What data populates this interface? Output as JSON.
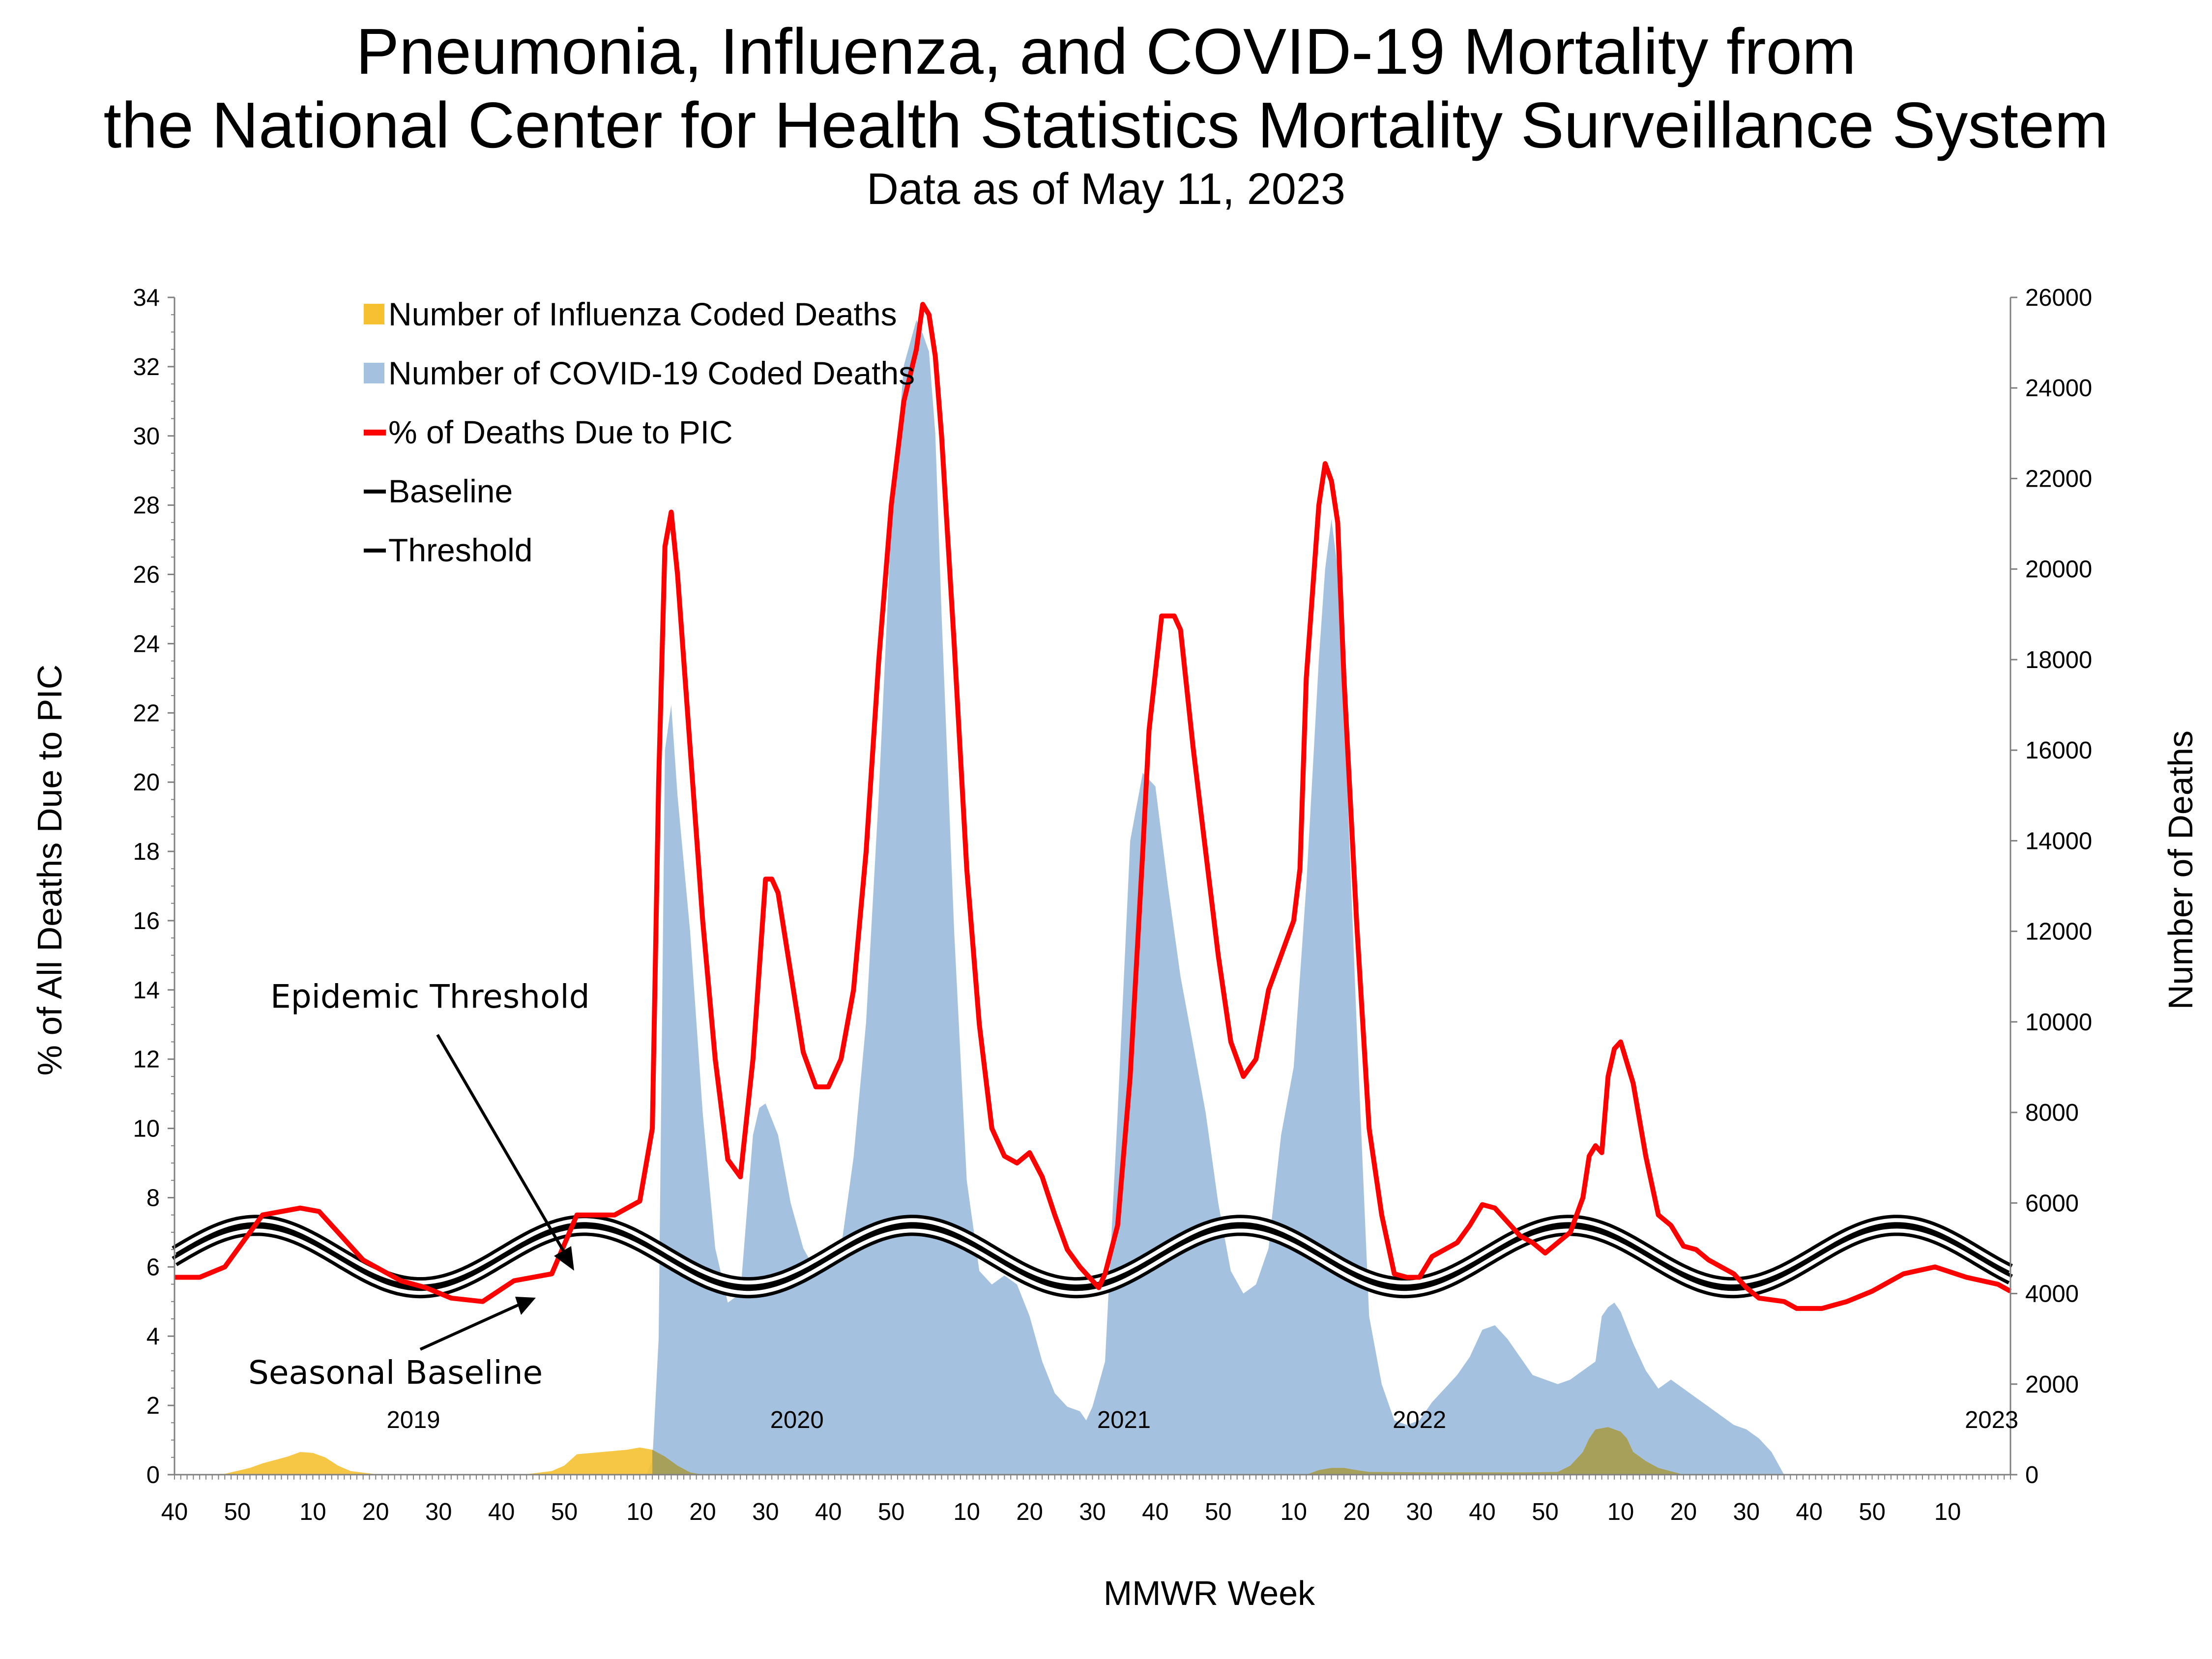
{
  "chart_data": {
    "type": "area",
    "title": "Pneumonia, Influenza, and COVID-19 Mortality from",
    "title_line2": "the National Center for Health Statistics Mortality Surveillance System",
    "subtitle": "Data as of May 11, 2023",
    "xlabel": "MMWR Week",
    "ylabel_left": "% of All Deaths Due to PIC",
    "ylabel_right": "Number of Deaths",
    "ylim_left": [
      0,
      34
    ],
    "ylim_right": [
      0,
      26000
    ],
    "left_ticks": [
      "0",
      "2",
      "4",
      "6",
      "8",
      "10",
      "12",
      "14",
      "16",
      "18",
      "20",
      "22",
      "24",
      "26",
      "28",
      "30",
      "32",
      "34"
    ],
    "right_ticks": [
      "0",
      "2000",
      "4000",
      "6000",
      "8000",
      "10000",
      "12000",
      "14000",
      "16000",
      "18000",
      "20000",
      "22000",
      "24000",
      "26000"
    ],
    "x_tick_labels": [
      "40",
      "50",
      "10",
      "20",
      "30",
      "40",
      "50",
      "10",
      "20",
      "30",
      "40",
      "50",
      "10",
      "20",
      "30",
      "40",
      "50",
      "10",
      "20",
      "30",
      "40",
      "50",
      "10",
      "20",
      "30",
      "40",
      "50",
      "10"
    ],
    "x_tick_weeks": [
      0,
      10,
      22,
      32,
      42,
      52,
      62,
      74,
      84,
      94,
      104,
      114,
      126,
      136,
      146,
      156,
      166,
      178,
      188,
      198,
      208,
      218,
      230,
      240,
      250,
      260,
      270,
      282
    ],
    "year_labels": [
      {
        "label": "2019",
        "week": 38
      },
      {
        "label": "2020",
        "week": 99
      },
      {
        "label": "2021",
        "week": 151
      },
      {
        "label": "2022",
        "week": 198
      },
      {
        "label": "2023",
        "week": 239
      }
    ],
    "grid": false,
    "legend_position": "top-left",
    "legend": [
      {
        "label": "Number of Influenza Coded Deaths",
        "color": "#F5C131"
      },
      {
        "label": "Number of COVID-19 Coded Deaths",
        "color": "#A4C2E0"
      },
      {
        "label": "% of Deaths Due to PIC",
        "color": "#FF0000"
      },
      {
        "label": "Baseline",
        "color": "#000000"
      },
      {
        "label": "Threshold",
        "color": "#000000"
      }
    ],
    "annotations": [
      "Epidemic Threshold",
      "Seasonal Baseline"
    ],
    "weeks_total": 240,
    "series": [
      {
        "name": "% of Deaths Due to PIC",
        "axis": "left",
        "color": "#FF0000",
        "points": [
          [
            0,
            5.7
          ],
          [
            4,
            5.7
          ],
          [
            8,
            6.0
          ],
          [
            14,
            7.5
          ],
          [
            20,
            7.7
          ],
          [
            23,
            7.6
          ],
          [
            26,
            7.0
          ],
          [
            30,
            6.2
          ],
          [
            36,
            5.6
          ],
          [
            40,
            5.4
          ],
          [
            44,
            5.1
          ],
          [
            49,
            5.0
          ],
          [
            54,
            5.6
          ],
          [
            60,
            5.8
          ],
          [
            64,
            7.5
          ],
          [
            70,
            7.5
          ],
          [
            74,
            7.9
          ],
          [
            76,
            10.0
          ],
          [
            77,
            20.0
          ],
          [
            78,
            26.8
          ],
          [
            79,
            27.8
          ],
          [
            80,
            26.0
          ],
          [
            82,
            21.0
          ],
          [
            84,
            16.0
          ],
          [
            86,
            12.0
          ],
          [
            88,
            9.1
          ],
          [
            90,
            8.6
          ],
          [
            92,
            12.0
          ],
          [
            94,
            17.2
          ],
          [
            95,
            17.2
          ],
          [
            96,
            16.8
          ],
          [
            98,
            14.5
          ],
          [
            100,
            12.2
          ],
          [
            102,
            11.2
          ],
          [
            104,
            11.2
          ],
          [
            106,
            12.0
          ],
          [
            108,
            14.0
          ],
          [
            110,
            18.0
          ],
          [
            112,
            23.5
          ],
          [
            114,
            28.0
          ],
          [
            116,
            31.0
          ],
          [
            118,
            32.5
          ],
          [
            119,
            33.8
          ],
          [
            120,
            33.5
          ],
          [
            121,
            32.3
          ],
          [
            122,
            30.0
          ],
          [
            124,
            24.0
          ],
          [
            126,
            17.5
          ],
          [
            128,
            13.0
          ],
          [
            130,
            10.0
          ],
          [
            132,
            9.2
          ],
          [
            134,
            9.0
          ],
          [
            136,
            9.3
          ],
          [
            138,
            8.6
          ],
          [
            140,
            7.5
          ],
          [
            142,
            6.5
          ],
          [
            144,
            6.0
          ],
          [
            146,
            5.6
          ],
          [
            147,
            5.4
          ],
          [
            148,
            5.8
          ],
          [
            150,
            7.2
          ],
          [
            152,
            11.5
          ],
          [
            154,
            18.0
          ],
          [
            155,
            21.5
          ],
          [
            157,
            24.8
          ],
          [
            159,
            24.8
          ],
          [
            160,
            24.4
          ],
          [
            162,
            21.0
          ],
          [
            164,
            18.0
          ],
          [
            166,
            15.0
          ],
          [
            168,
            12.5
          ],
          [
            170,
            11.5
          ],
          [
            172,
            12.0
          ],
          [
            174,
            14.0
          ],
          [
            176,
            15.0
          ],
          [
            177,
            15.5
          ],
          [
            178,
            16.0
          ],
          [
            179,
            17.5
          ],
          [
            180,
            23.0
          ],
          [
            182,
            28.0
          ],
          [
            183,
            29.2
          ],
          [
            184,
            28.7
          ],
          [
            185,
            27.5
          ],
          [
            186,
            23.0
          ],
          [
            188,
            16.0
          ],
          [
            190,
            10.0
          ],
          [
            192,
            7.5
          ],
          [
            194,
            5.8
          ],
          [
            196,
            5.7
          ],
          [
            198,
            5.7
          ],
          [
            200,
            6.3
          ],
          [
            204,
            6.7
          ],
          [
            206,
            7.2
          ],
          [
            208,
            7.8
          ],
          [
            210,
            7.7
          ],
          [
            212,
            7.3
          ],
          [
            214,
            6.9
          ],
          [
            216,
            6.7
          ],
          [
            218,
            6.4
          ],
          [
            220,
            6.7
          ],
          [
            222,
            7.0
          ],
          [
            224,
            8.0
          ],
          [
            225,
            9.2
          ],
          [
            226,
            9.5
          ],
          [
            227,
            9.3
          ],
          [
            228,
            11.5
          ],
          [
            229,
            12.3
          ],
          [
            230,
            12.5
          ],
          [
            232,
            11.3
          ],
          [
            234,
            9.2
          ],
          [
            236,
            7.5
          ],
          [
            238,
            7.2
          ],
          [
            240,
            6.6
          ],
          [
            242,
            6.5
          ],
          [
            244,
            6.2
          ],
          [
            246,
            6.0
          ],
          [
            248,
            5.8
          ],
          [
            250,
            5.4
          ],
          [
            252,
            5.1
          ],
          [
            256,
            5.0
          ],
          [
            258,
            4.8
          ],
          [
            260,
            4.8
          ],
          [
            262,
            4.8
          ],
          [
            264,
            4.9
          ],
          [
            266,
            5.0
          ],
          [
            270,
            5.3
          ],
          [
            275,
            5.8
          ],
          [
            280,
            6.0
          ],
          [
            285,
            5.7
          ],
          [
            290,
            5.5
          ],
          [
            292,
            5.3
          ]
        ]
      },
      {
        "name": "Number of COVID-19 Coded Deaths",
        "axis": "right",
        "color": "#A4C2E0",
        "points": [
          [
            75,
            0
          ],
          [
            76,
            300
          ],
          [
            77,
            3000
          ],
          [
            78,
            16000
          ],
          [
            79,
            17000
          ],
          [
            80,
            15000
          ],
          [
            82,
            12000
          ],
          [
            84,
            8000
          ],
          [
            86,
            5000
          ],
          [
            88,
            3800
          ],
          [
            90,
            4000
          ],
          [
            92,
            7500
          ],
          [
            93,
            8100
          ],
          [
            94,
            8200
          ],
          [
            96,
            7500
          ],
          [
            98,
            6000
          ],
          [
            100,
            5000
          ],
          [
            102,
            4500
          ],
          [
            104,
            4800
          ],
          [
            106,
            5000
          ],
          [
            108,
            7000
          ],
          [
            110,
            10000
          ],
          [
            112,
            15000
          ],
          [
            114,
            21000
          ],
          [
            116,
            24500
          ],
          [
            118,
            25500
          ],
          [
            119,
            25200
          ],
          [
            120,
            24800
          ],
          [
            121,
            23000
          ],
          [
            122,
            19000
          ],
          [
            124,
            12000
          ],
          [
            126,
            6500
          ],
          [
            128,
            4500
          ],
          [
            130,
            4200
          ],
          [
            132,
            4400
          ],
          [
            134,
            4200
          ],
          [
            136,
            3500
          ],
          [
            138,
            2500
          ],
          [
            140,
            1800
          ],
          [
            142,
            1500
          ],
          [
            144,
            1400
          ],
          [
            145,
            1200
          ],
          [
            146,
            1500
          ],
          [
            148,
            2500
          ],
          [
            150,
            8000
          ],
          [
            152,
            14000
          ],
          [
            154,
            15500
          ],
          [
            156,
            15200
          ],
          [
            158,
            13000
          ],
          [
            160,
            11000
          ],
          [
            162,
            9500
          ],
          [
            164,
            8000
          ],
          [
            166,
            6000
          ],
          [
            168,
            4500
          ],
          [
            170,
            4000
          ],
          [
            172,
            4200
          ],
          [
            174,
            5000
          ],
          [
            176,
            7500
          ],
          [
            178,
            9000
          ],
          [
            180,
            13000
          ],
          [
            182,
            18000
          ],
          [
            183,
            20000
          ],
          [
            184,
            21100
          ],
          [
            185,
            20000
          ],
          [
            186,
            17000
          ],
          [
            188,
            10000
          ],
          [
            190,
            3500
          ],
          [
            192,
            2000
          ],
          [
            194,
            1200
          ],
          [
            196,
            1100
          ],
          [
            198,
            1200
          ],
          [
            200,
            1600
          ],
          [
            202,
            1900
          ],
          [
            204,
            2200
          ],
          [
            206,
            2600
          ],
          [
            208,
            3200
          ],
          [
            210,
            3300
          ],
          [
            212,
            3000
          ],
          [
            214,
            2600
          ],
          [
            216,
            2200
          ],
          [
            218,
            2100
          ],
          [
            220,
            2000
          ],
          [
            222,
            2100
          ],
          [
            224,
            2300
          ],
          [
            226,
            2500
          ],
          [
            227,
            3500
          ],
          [
            228,
            3700
          ],
          [
            229,
            3800
          ],
          [
            230,
            3600
          ],
          [
            232,
            2900
          ],
          [
            234,
            2300
          ],
          [
            236,
            1900
          ],
          [
            238,
            2100
          ],
          [
            240,
            1900
          ],
          [
            242,
            1700
          ],
          [
            244,
            1500
          ],
          [
            246,
            1300
          ],
          [
            248,
            1100
          ],
          [
            250,
            1000
          ],
          [
            252,
            800
          ],
          [
            254,
            500
          ],
          [
            256,
            0
          ]
        ]
      },
      {
        "name": "Number of Influenza Coded Deaths",
        "axis": "right",
        "color": "#F5C131",
        "points": [
          [
            0,
            0
          ],
          [
            8,
            20
          ],
          [
            12,
            150
          ],
          [
            14,
            250
          ],
          [
            18,
            400
          ],
          [
            20,
            500
          ],
          [
            22,
            480
          ],
          [
            24,
            380
          ],
          [
            26,
            200
          ],
          [
            28,
            80
          ],
          [
            32,
            10
          ],
          [
            56,
            10
          ],
          [
            60,
            80
          ],
          [
            62,
            200
          ],
          [
            64,
            450
          ],
          [
            68,
            500
          ],
          [
            72,
            550
          ],
          [
            74,
            600
          ],
          [
            76,
            550
          ],
          [
            78,
            400
          ],
          [
            80,
            200
          ],
          [
            82,
            50
          ],
          [
            84,
            0
          ],
          [
            180,
            0
          ],
          [
            182,
            100
          ],
          [
            184,
            150
          ],
          [
            186,
            150
          ],
          [
            188,
            100
          ],
          [
            190,
            60
          ],
          [
            200,
            50
          ],
          [
            215,
            50
          ],
          [
            220,
            60
          ],
          [
            222,
            200
          ],
          [
            224,
            500
          ],
          [
            225,
            800
          ],
          [
            226,
            1000
          ],
          [
            228,
            1050
          ],
          [
            230,
            950
          ],
          [
            231,
            800
          ],
          [
            232,
            500
          ],
          [
            234,
            300
          ],
          [
            236,
            150
          ],
          [
            240,
            0
          ]
        ]
      }
    ]
  }
}
